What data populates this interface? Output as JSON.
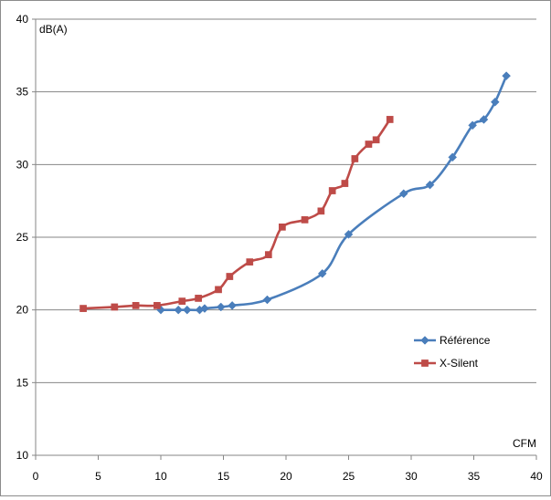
{
  "chart_data": {
    "type": "line",
    "title": "",
    "xlabel": "CFM",
    "ylabel": "dB(A)",
    "xlim": [
      0,
      40
    ],
    "ylim": [
      10,
      40
    ],
    "x_ticks": [
      0,
      5,
      10,
      15,
      20,
      25,
      30,
      35,
      40
    ],
    "y_ticks": [
      10,
      15,
      20,
      25,
      30,
      35,
      40
    ],
    "grid": "horizontal",
    "legend_position": "right",
    "series": [
      {
        "name": "Référence",
        "color": "#4a7ebb",
        "marker": "diamond",
        "points": [
          [
            10.0,
            20.0
          ],
          [
            11.4,
            20.0
          ],
          [
            12.1,
            20.0
          ],
          [
            13.1,
            20.0
          ],
          [
            13.5,
            20.1
          ],
          [
            14.8,
            20.2
          ],
          [
            15.7,
            20.3
          ],
          [
            18.5,
            20.7
          ],
          [
            22.9,
            22.5
          ],
          [
            25.0,
            25.2
          ],
          [
            29.4,
            28.0
          ],
          [
            31.5,
            28.6
          ],
          [
            33.3,
            30.5
          ],
          [
            34.9,
            32.7
          ],
          [
            35.8,
            33.1
          ],
          [
            36.7,
            34.3
          ],
          [
            37.6,
            36.1
          ]
        ]
      },
      {
        "name": "X-Silent",
        "color": "#be4b48",
        "marker": "square",
        "points": [
          [
            3.8,
            20.1
          ],
          [
            6.3,
            20.2
          ],
          [
            8.0,
            20.3
          ],
          [
            9.7,
            20.3
          ],
          [
            11.7,
            20.6
          ],
          [
            13.0,
            20.8
          ],
          [
            14.6,
            21.4
          ],
          [
            15.5,
            22.3
          ],
          [
            17.1,
            23.3
          ],
          [
            18.6,
            23.8
          ],
          [
            19.7,
            25.7
          ],
          [
            21.5,
            26.2
          ],
          [
            22.8,
            26.8
          ],
          [
            23.7,
            28.2
          ],
          [
            24.7,
            28.7
          ],
          [
            25.5,
            30.4
          ],
          [
            26.6,
            31.4
          ],
          [
            27.2,
            31.7
          ],
          [
            28.3,
            33.1
          ]
        ]
      }
    ]
  }
}
